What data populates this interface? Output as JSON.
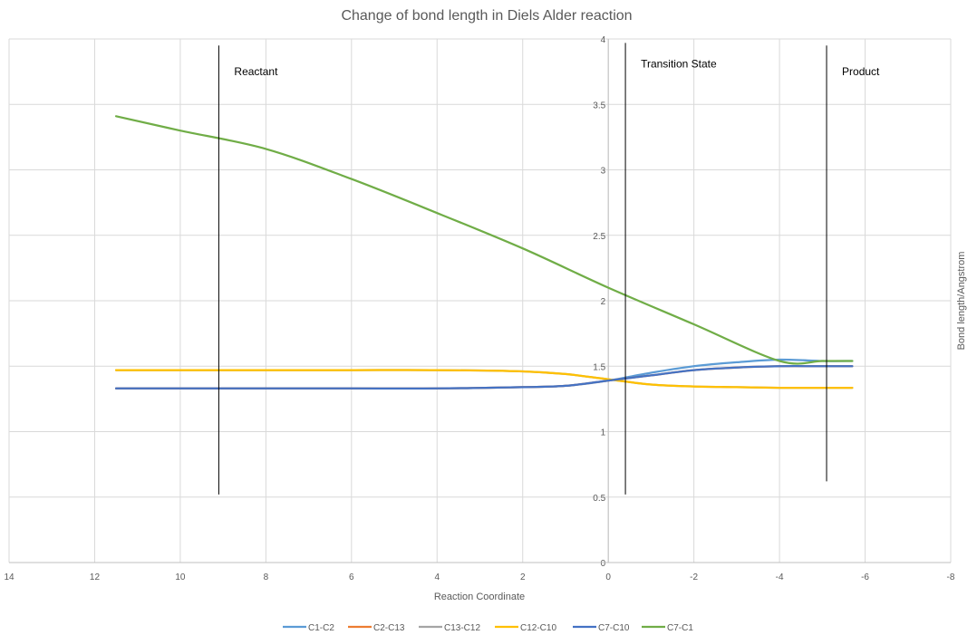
{
  "chart_data": {
    "type": "line",
    "title": "Change of bond length in Diels Alder reaction",
    "xlabel": "Reaction Coordinate",
    "ylabel": "Bond length/Angstrom",
    "xlim": [
      14,
      -8
    ],
    "ylim": [
      0,
      4
    ],
    "x_reversed": true,
    "x_ticks": [
      14,
      12,
      10,
      8,
      6,
      4,
      2,
      0,
      -2,
      -4,
      -6,
      -8
    ],
    "y_ticks": [
      0,
      0.5,
      1,
      1.5,
      2,
      2.5,
      3,
      3.5,
      4
    ],
    "x_tick_labels": [
      "14",
      "12",
      "10",
      "8",
      "6",
      "4",
      "2",
      "0",
      "-2",
      "-4",
      "-6",
      "-8"
    ],
    "y_tick_labels": [
      "0",
      "0.5",
      "1",
      "1.5",
      "2",
      "2.5",
      "3",
      "3.5",
      "4"
    ],
    "grid": true,
    "legend_position": "bottom",
    "series": [
      {
        "name": "C1-C2",
        "color": "#5B9BD5",
        "x": [
          11.5,
          10,
          8,
          6,
          4,
          2,
          1,
          0,
          -1,
          -2,
          -3,
          -4,
          -5,
          -5.7
        ],
        "y": [
          1.33,
          1.33,
          1.33,
          1.33,
          1.33,
          1.34,
          1.35,
          1.39,
          1.45,
          1.5,
          1.53,
          1.55,
          1.54,
          1.54
        ]
      },
      {
        "name": "C2-C13",
        "color": "#ED7D31",
        "x": [
          11.5,
          10,
          8,
          6,
          4,
          2,
          1,
          0,
          -1,
          -2,
          -3,
          -4,
          -5,
          -5.7
        ],
        "y": [
          1.33,
          1.33,
          1.33,
          1.33,
          1.33,
          1.34,
          1.35,
          1.39,
          1.43,
          1.47,
          1.49,
          1.5,
          1.5,
          1.5
        ]
      },
      {
        "name": "C13-C12",
        "color": "#A5A5A5",
        "x": [
          11.5,
          10,
          8,
          6,
          4,
          2,
          1,
          0,
          -1,
          -2,
          -3,
          -4,
          -5,
          -5.7
        ],
        "y": [
          1.47,
          1.47,
          1.47,
          1.47,
          1.47,
          1.46,
          1.44,
          1.4,
          1.36,
          1.345,
          1.34,
          1.335,
          1.335,
          1.335
        ]
      },
      {
        "name": "C12-C10",
        "color": "#FFC000",
        "x": [
          11.5,
          10,
          8,
          6,
          4,
          2,
          1,
          0,
          -1,
          -2,
          -3,
          -4,
          -5,
          -5.7
        ],
        "y": [
          1.47,
          1.47,
          1.47,
          1.47,
          1.47,
          1.46,
          1.44,
          1.4,
          1.36,
          1.345,
          1.34,
          1.335,
          1.335,
          1.335
        ]
      },
      {
        "name": "C7-C10",
        "color": "#4472C4",
        "x": [
          11.5,
          10,
          8,
          6,
          4,
          2,
          1,
          0,
          -1,
          -2,
          -3,
          -4,
          -5,
          -5.7
        ],
        "y": [
          1.33,
          1.33,
          1.33,
          1.33,
          1.33,
          1.34,
          1.35,
          1.39,
          1.43,
          1.47,
          1.49,
          1.5,
          1.5,
          1.5
        ]
      },
      {
        "name": "C7-C1",
        "color": "#70AD47",
        "x": [
          11.5,
          10,
          8,
          6,
          4,
          2,
          0,
          -2,
          -4,
          -5,
          -5.7
        ],
        "y": [
          3.41,
          3.3,
          3.16,
          2.93,
          2.67,
          2.4,
          2.1,
          1.82,
          1.54,
          1.54,
          1.54
        ]
      }
    ],
    "markers": [
      {
        "label": "Reactant",
        "x": 9.1,
        "y_from": 0.52,
        "y_to": 3.95
      },
      {
        "label": "Transition State",
        "x": -0.4,
        "y_from": 0.52,
        "y_to": 3.97
      },
      {
        "label": "Product",
        "x": -5.1,
        "y_from": 0.62,
        "y_to": 3.95
      }
    ]
  }
}
